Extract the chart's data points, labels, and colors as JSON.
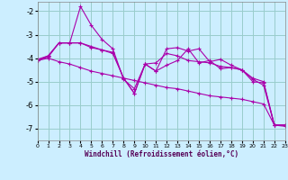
{
  "xlabel": "Windchill (Refroidissement éolien,°C)",
  "ylabel": "",
  "bg_color": "#cceeff",
  "line_color": "#aa00aa",
  "grid_color": "#99cccc",
  "x_ticks": [
    0,
    1,
    2,
    3,
    4,
    5,
    6,
    7,
    8,
    9,
    10,
    11,
    12,
    13,
    14,
    15,
    16,
    17,
    18,
    19,
    20,
    21,
    22,
    23
  ],
  "y_ticks": [
    -7,
    -6,
    -5,
    -4,
    -3,
    -2
  ],
  "xlim": [
    0,
    23
  ],
  "ylim": [
    -7.5,
    -1.6
  ],
  "lines": [
    {
      "x": [
        0,
        1,
        2,
        3,
        4,
        5,
        6,
        7,
        8,
        9,
        10,
        11,
        12,
        13,
        14,
        15,
        16,
        17,
        18,
        19,
        20,
        21,
        22,
        23
      ],
      "y": [
        -4.1,
        -3.9,
        -3.35,
        -3.35,
        -1.8,
        -2.6,
        -3.2,
        -3.6,
        -4.9,
        -5.3,
        -4.25,
        -4.55,
        -3.6,
        -3.55,
        -3.7,
        -3.6,
        -4.15,
        -4.05,
        -4.3,
        -4.5,
        -4.85,
        -5.0,
        -6.85,
        -6.85
      ]
    },
    {
      "x": [
        0,
        1,
        2,
        3,
        4,
        5,
        6,
        7,
        8,
        9,
        10,
        11,
        12,
        13,
        14,
        15,
        16,
        17,
        18,
        19,
        20,
        21,
        22,
        23
      ],
      "y": [
        -4.1,
        -3.95,
        -3.35,
        -3.35,
        -3.35,
        -3.55,
        -3.65,
        -3.75,
        -4.85,
        -5.5,
        -4.25,
        -4.2,
        -3.8,
        -3.9,
        -4.1,
        -4.15,
        -4.2,
        -4.35,
        -4.4,
        -4.5,
        -4.9,
        -5.15,
        -6.85,
        -6.85
      ]
    },
    {
      "x": [
        0,
        1,
        2,
        3,
        4,
        5,
        6,
        7,
        8,
        9,
        10,
        11,
        12,
        13,
        14,
        15,
        16,
        17,
        18,
        19,
        20,
        21,
        22,
        23
      ],
      "y": [
        -4.05,
        -3.9,
        -3.35,
        -3.35,
        -3.35,
        -3.5,
        -3.65,
        -3.8,
        -4.85,
        -5.5,
        -4.25,
        -4.55,
        -4.3,
        -4.1,
        -3.6,
        -4.2,
        -4.1,
        -4.45,
        -4.4,
        -4.5,
        -5.0,
        -5.05,
        -6.85,
        -6.85
      ]
    },
    {
      "x": [
        0,
        1,
        2,
        3,
        4,
        5,
        6,
        7,
        8,
        9,
        10,
        11,
        12,
        13,
        14,
        15,
        16,
        17,
        18,
        19,
        20,
        21,
        22,
        23
      ],
      "y": [
        -4.1,
        -4.0,
        -4.15,
        -4.25,
        -4.4,
        -4.55,
        -4.65,
        -4.75,
        -4.85,
        -4.95,
        -5.05,
        -5.15,
        -5.25,
        -5.3,
        -5.4,
        -5.5,
        -5.6,
        -5.65,
        -5.7,
        -5.75,
        -5.85,
        -5.95,
        -6.85,
        -6.9
      ]
    }
  ]
}
